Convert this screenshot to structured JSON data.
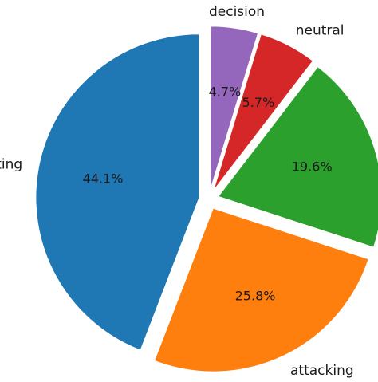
{
  "chart_data": {
    "type": "pie",
    "slices": [
      {
        "label": "",
        "value": 44.1,
        "pct_text": "44.1%",
        "color": "#1f77b4"
      },
      {
        "label": "attacking",
        "value": 25.8,
        "pct_text": "25.8%",
        "color": "#ff7f0e"
      },
      {
        "label": "",
        "value": 19.6,
        "pct_text": "19.6%",
        "color": "#2ca02c"
      },
      {
        "label": "neutral",
        "value": 5.7,
        "pct_text": "5.7%",
        "color": "#d62728"
      },
      {
        "label": "decision",
        "value": 4.7,
        "pct_text": "4.7%",
        "color": "#9467bd"
      }
    ],
    "partial_labels": {
      "first_slice_visible_text": "ting"
    },
    "start_angle": "top (12 o'clock)",
    "direction": "counterclockwise",
    "exploded": true
  }
}
